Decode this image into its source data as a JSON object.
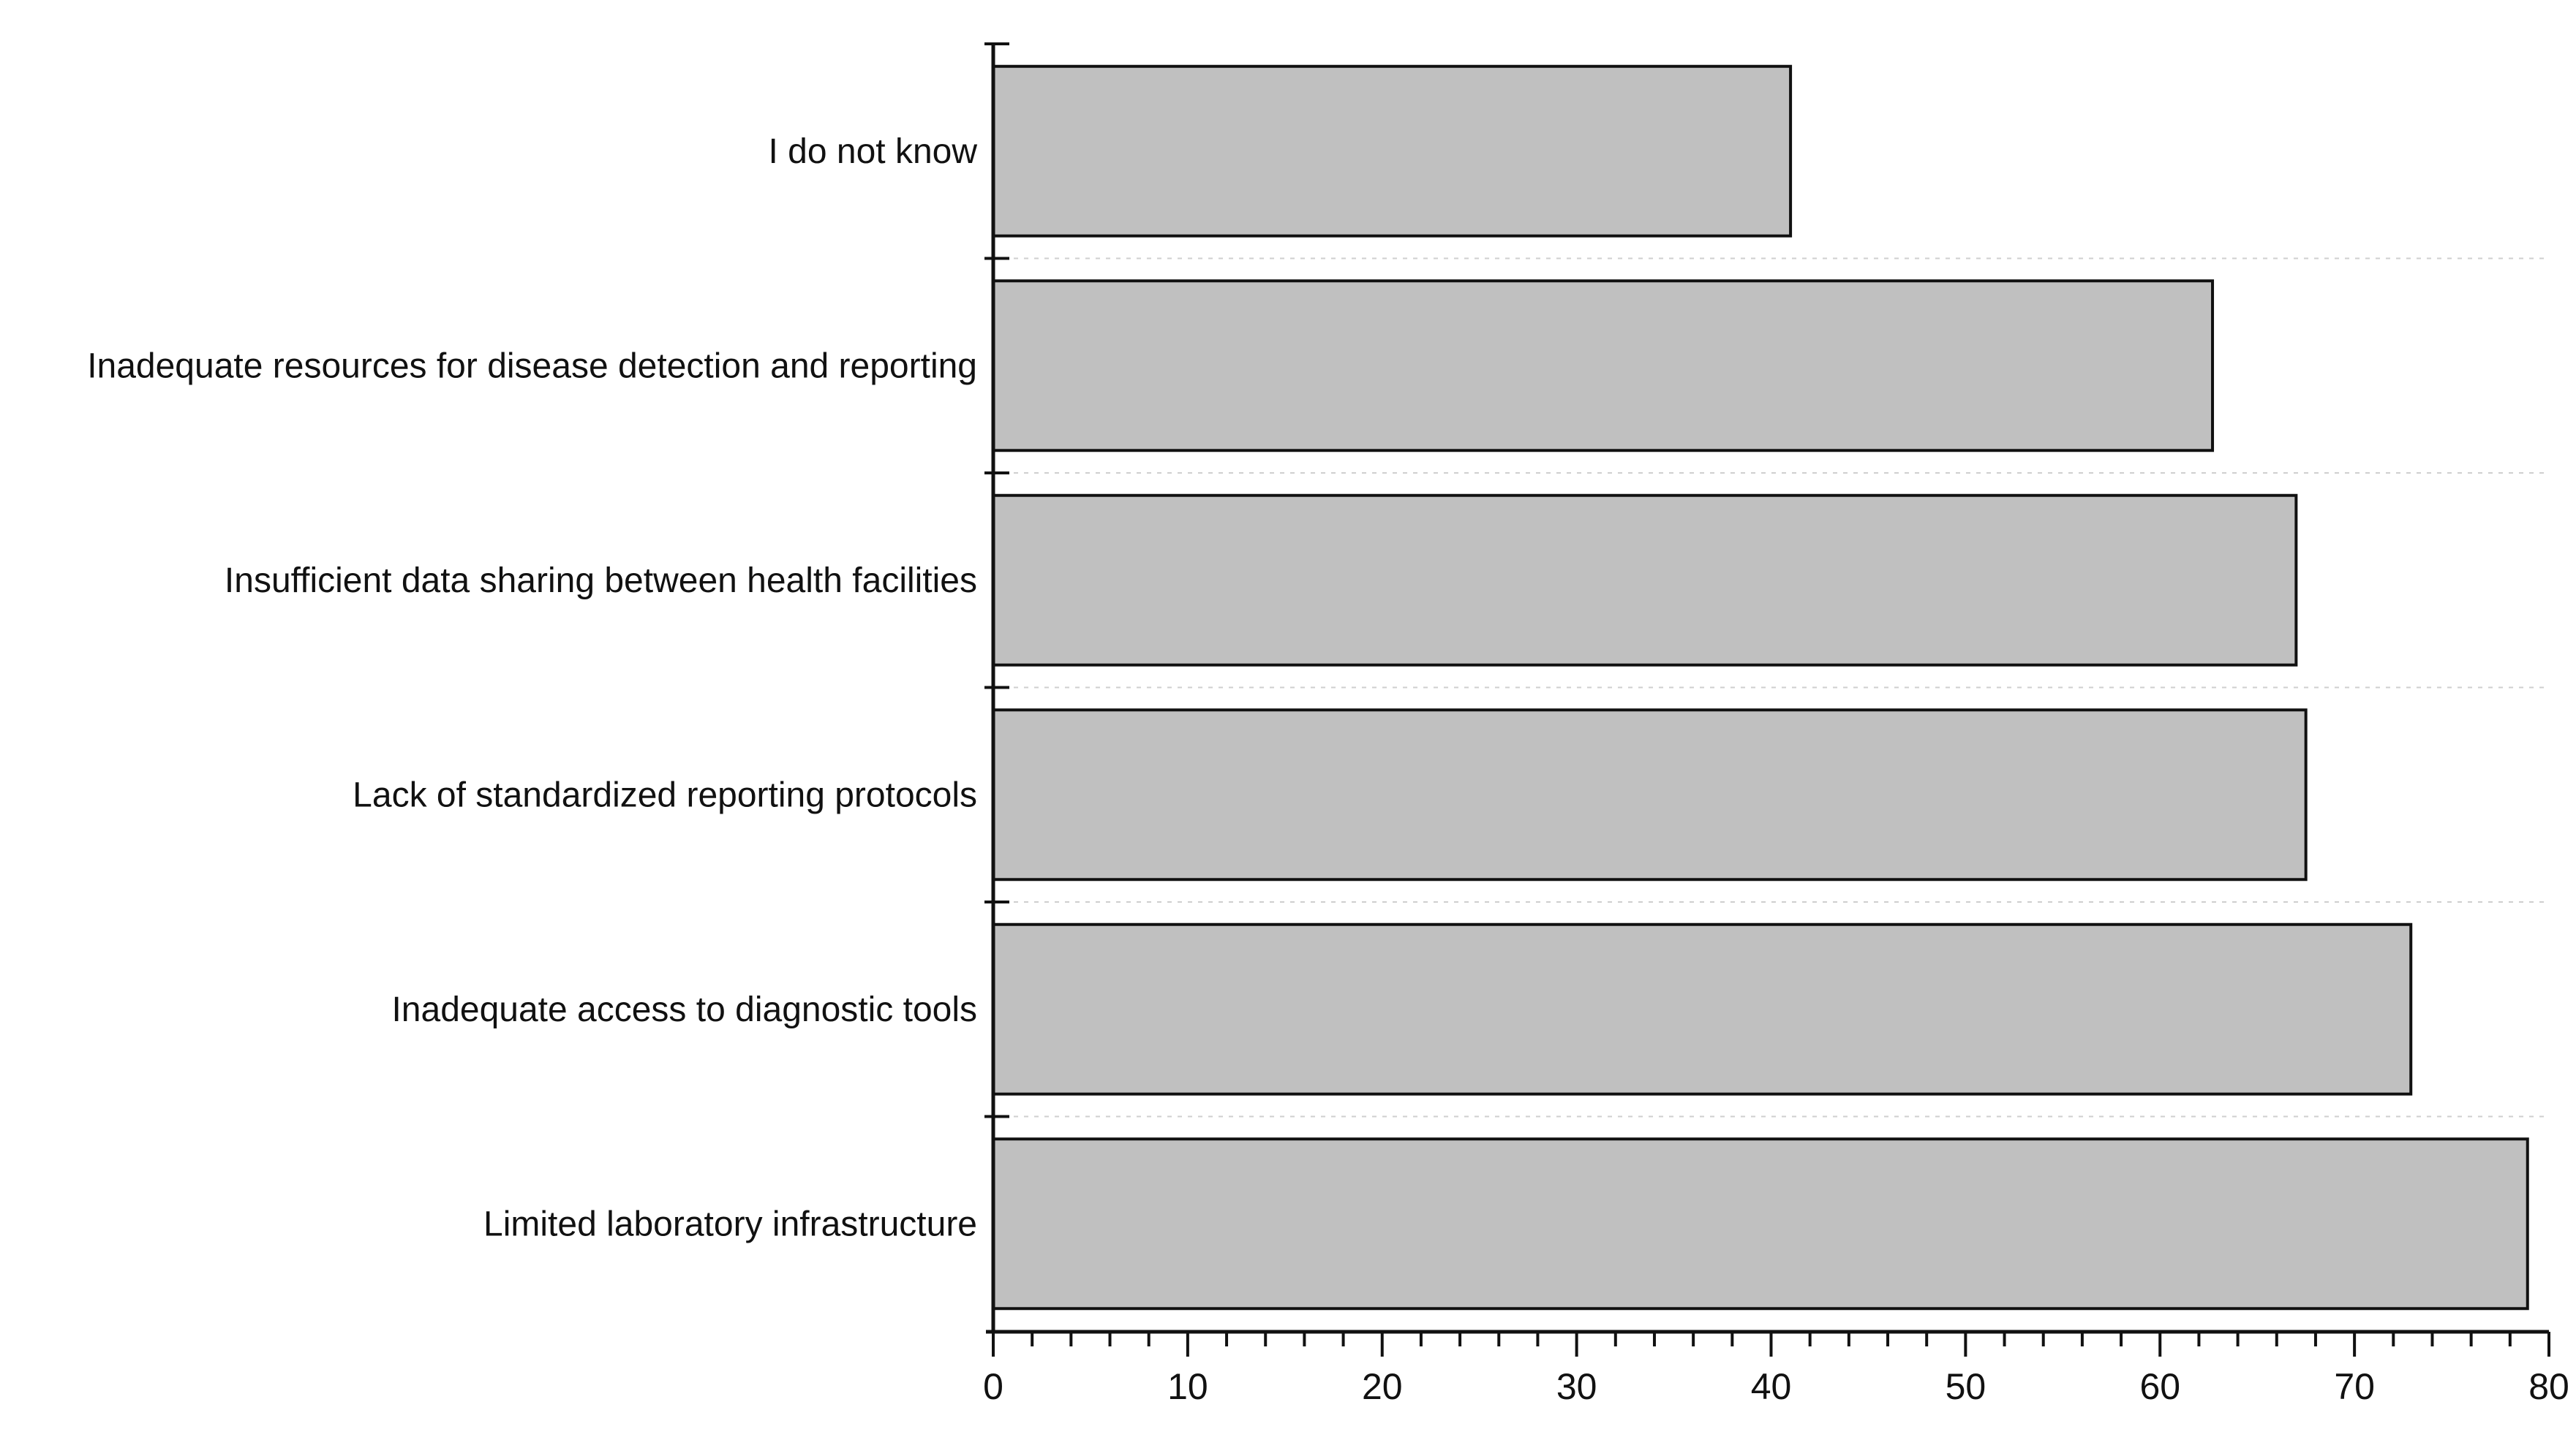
{
  "chart_data": {
    "type": "bar",
    "orientation": "horizontal",
    "categories": [
      "I do not know",
      "Inadequate resources for disease detection and reporting",
      "Insufficient data sharing between health facilities",
      "Lack of standardized reporting protocols",
      "Inadequate access to diagnostic tools",
      "Limited laboratory infrastructure"
    ],
    "values": [
      41,
      62.7,
      67,
      67.5,
      72.9,
      78.9
    ],
    "title": "",
    "xlabel": "",
    "ylabel": "",
    "xlim": [
      0,
      80
    ],
    "x_ticks": [
      "0",
      "10",
      "20",
      "30",
      "40",
      "50",
      "60",
      "70",
      "80"
    ],
    "grid": "dashed horizontal separators between categories",
    "colors": {
      "bar_fill": "#c0c0c0",
      "bar_stroke": "#111111"
    }
  }
}
